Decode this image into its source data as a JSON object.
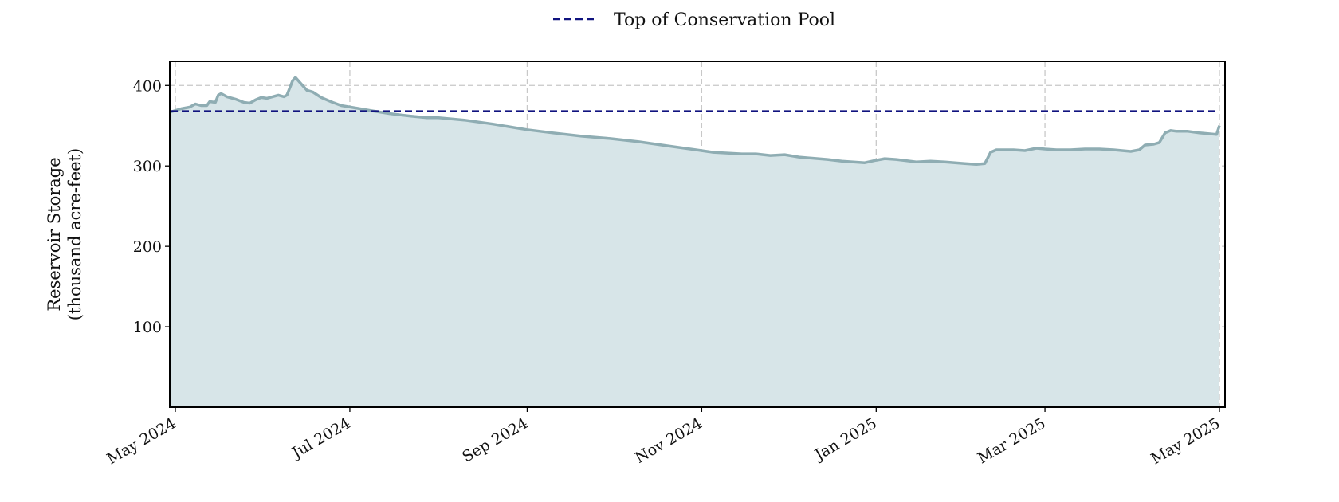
{
  "chart_data": {
    "type": "area",
    "title": "",
    "xlabel": "",
    "ylabel": "Reservoir Storage",
    "ylabel_line2": "(thousand acre-feet)",
    "xlim": [
      "2024-05-01",
      "2025-05-01"
    ],
    "ylim": [
      0,
      430
    ],
    "yticks": [
      100,
      200,
      300,
      400
    ],
    "xticks": [
      {
        "date": "2024-05-01",
        "label": "May 2024"
      },
      {
        "date": "2024-07-01",
        "label": "Jul 2024"
      },
      {
        "date": "2024-09-01",
        "label": "Sep 2024"
      },
      {
        "date": "2024-11-01",
        "label": "Nov 2024"
      },
      {
        "date": "2025-01-01",
        "label": "Jan 2025"
      },
      {
        "date": "2025-03-01",
        "label": "Mar 2025"
      },
      {
        "date": "2025-05-01",
        "label": "May 2025"
      }
    ],
    "grid": true,
    "legend_position": "top-center",
    "series": [
      {
        "kind": "area",
        "color": "#8fadb3",
        "fill": "#d7e5e8",
        "points": [
          [
            "2024-04-29",
            367
          ],
          [
            "2024-05-03",
            371
          ],
          [
            "2024-05-06",
            373
          ],
          [
            "2024-05-08",
            377
          ],
          [
            "2024-05-10",
            375
          ],
          [
            "2024-05-12",
            375
          ],
          [
            "2024-05-13",
            380
          ],
          [
            "2024-05-15",
            379
          ],
          [
            "2024-05-16",
            388
          ],
          [
            "2024-05-17",
            390
          ],
          [
            "2024-05-19",
            386
          ],
          [
            "2024-05-22",
            383
          ],
          [
            "2024-05-25",
            379
          ],
          [
            "2024-05-27",
            378
          ],
          [
            "2024-05-29",
            382
          ],
          [
            "2024-05-31",
            385
          ],
          [
            "2024-06-02",
            384
          ],
          [
            "2024-06-04",
            386
          ],
          [
            "2024-06-06",
            388
          ],
          [
            "2024-06-08",
            386
          ],
          [
            "2024-06-09",
            388
          ],
          [
            "2024-06-11",
            406
          ],
          [
            "2024-06-12",
            410
          ],
          [
            "2024-06-14",
            402
          ],
          [
            "2024-06-16",
            394
          ],
          [
            "2024-06-18",
            392
          ],
          [
            "2024-06-21",
            385
          ],
          [
            "2024-06-25",
            379
          ],
          [
            "2024-06-28",
            375
          ],
          [
            "2024-07-03",
            372
          ],
          [
            "2024-07-08",
            369
          ],
          [
            "2024-07-15",
            365
          ],
          [
            "2024-07-22",
            362
          ],
          [
            "2024-07-28",
            360
          ],
          [
            "2024-08-01",
            360
          ],
          [
            "2024-08-10",
            357
          ],
          [
            "2024-08-20",
            352
          ],
          [
            "2024-09-01",
            345
          ],
          [
            "2024-09-10",
            341
          ],
          [
            "2024-09-20",
            337
          ],
          [
            "2024-09-30",
            334
          ],
          [
            "2024-10-10",
            330
          ],
          [
            "2024-10-20",
            325
          ],
          [
            "2024-10-30",
            320
          ],
          [
            "2024-11-05",
            317
          ],
          [
            "2024-11-15",
            315
          ],
          [
            "2024-11-20",
            315
          ],
          [
            "2024-11-25",
            313
          ],
          [
            "2024-11-30",
            314
          ],
          [
            "2024-12-05",
            311
          ],
          [
            "2024-12-15",
            308
          ],
          [
            "2024-12-20",
            306
          ],
          [
            "2024-12-28",
            304
          ],
          [
            "2025-01-01",
            307
          ],
          [
            "2025-01-04",
            309
          ],
          [
            "2025-01-08",
            308
          ],
          [
            "2025-01-15",
            305
          ],
          [
            "2025-01-20",
            306
          ],
          [
            "2025-01-25",
            305
          ],
          [
            "2025-02-01",
            303
          ],
          [
            "2025-02-05",
            302
          ],
          [
            "2025-02-08",
            303
          ],
          [
            "2025-02-10",
            317
          ],
          [
            "2025-02-12",
            320
          ],
          [
            "2025-02-18",
            320
          ],
          [
            "2025-02-22",
            319
          ],
          [
            "2025-02-26",
            322
          ],
          [
            "2025-03-01",
            321
          ],
          [
            "2025-03-05",
            320
          ],
          [
            "2025-03-10",
            320
          ],
          [
            "2025-03-15",
            321
          ],
          [
            "2025-03-20",
            321
          ],
          [
            "2025-03-25",
            320
          ],
          [
            "2025-03-31",
            318
          ],
          [
            "2025-04-03",
            320
          ],
          [
            "2025-04-05",
            326
          ],
          [
            "2025-04-08",
            327
          ],
          [
            "2025-04-10",
            329
          ],
          [
            "2025-04-12",
            341
          ],
          [
            "2025-04-14",
            344
          ],
          [
            "2025-04-16",
            343
          ],
          [
            "2025-04-20",
            343
          ],
          [
            "2025-04-24",
            341
          ],
          [
            "2025-04-27",
            340
          ],
          [
            "2025-04-30",
            339
          ],
          [
            "2025-05-01",
            350
          ]
        ]
      },
      {
        "kind": "hline",
        "name": "Top of Conservation Pool",
        "color": "#10137f",
        "dash": "dashed",
        "y": 368
      }
    ]
  }
}
